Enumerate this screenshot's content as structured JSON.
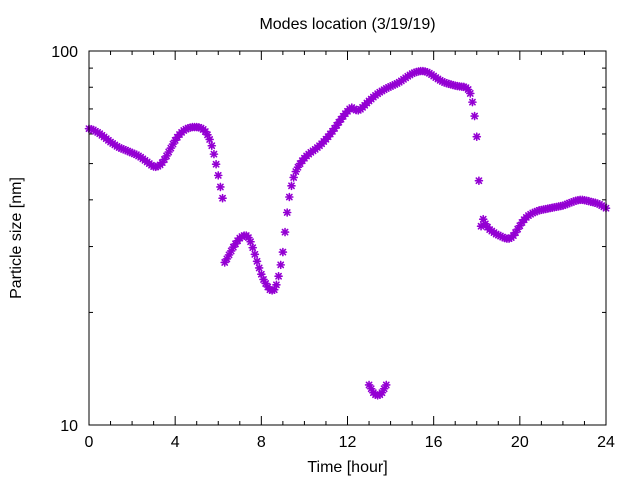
{
  "chart_data": {
    "type": "scatter",
    "title": "Modes location (3/19/19)",
    "xlabel": "Time [hour]",
    "ylabel": "Particle size [nm]",
    "xlim": [
      0,
      24
    ],
    "ylim": [
      10,
      100
    ],
    "yscale": "log",
    "grid": false,
    "legend": "none",
    "x_ticks": [
      "0",
      "4",
      "8",
      "12",
      "16",
      "20",
      "24"
    ],
    "y_ticks": [
      "10",
      "100"
    ],
    "marker_color": "#9400d3",
    "series": [
      {
        "points": [
          [
            0.0,
            62.0
          ],
          [
            0.1,
            61.8
          ],
          [
            0.2,
            61.5
          ],
          [
            0.3,
            61.0
          ],
          [
            0.4,
            60.6
          ],
          [
            0.5,
            60.1
          ],
          [
            0.6,
            59.5
          ],
          [
            0.7,
            58.9
          ],
          [
            0.8,
            58.3
          ],
          [
            0.9,
            57.7
          ],
          [
            1.0,
            57.1
          ],
          [
            1.1,
            56.6
          ],
          [
            1.2,
            56.1
          ],
          [
            1.3,
            55.6
          ],
          [
            1.4,
            55.2
          ],
          [
            1.5,
            54.9
          ],
          [
            1.6,
            54.6
          ],
          [
            1.7,
            54.3
          ],
          [
            1.8,
            54.0
          ],
          [
            1.9,
            53.7
          ],
          [
            2.0,
            53.4
          ],
          [
            2.1,
            53.1
          ],
          [
            2.2,
            52.8
          ],
          [
            2.3,
            52.4
          ],
          [
            2.4,
            52.0
          ],
          [
            2.5,
            51.5
          ],
          [
            2.6,
            51.0
          ],
          [
            2.7,
            50.5
          ],
          [
            2.8,
            50.0
          ],
          [
            2.9,
            49.5
          ],
          [
            3.0,
            49.1
          ],
          [
            3.1,
            49.0
          ],
          [
            3.2,
            49.2
          ],
          [
            3.3,
            49.6
          ],
          [
            3.4,
            50.3
          ],
          [
            3.5,
            51.3
          ],
          [
            3.6,
            52.4
          ],
          [
            3.7,
            53.7
          ],
          [
            3.8,
            55.0
          ],
          [
            3.9,
            56.4
          ],
          [
            4.0,
            57.7
          ],
          [
            4.1,
            58.8
          ],
          [
            4.2,
            59.8
          ],
          [
            4.3,
            60.6
          ],
          [
            4.4,
            61.3
          ],
          [
            4.5,
            61.8
          ],
          [
            4.6,
            62.2
          ],
          [
            4.7,
            62.4
          ],
          [
            4.8,
            62.6
          ],
          [
            4.9,
            62.6
          ],
          [
            5.0,
            62.6
          ],
          [
            5.1,
            62.5
          ],
          [
            5.2,
            62.2
          ],
          [
            5.3,
            61.7
          ],
          [
            5.4,
            60.9
          ],
          [
            5.5,
            59.7
          ],
          [
            5.6,
            58.0
          ],
          [
            5.7,
            55.8
          ],
          [
            5.8,
            53.0
          ],
          [
            5.9,
            49.8
          ],
          [
            6.0,
            46.5
          ],
          [
            6.1,
            43.3
          ],
          [
            6.2,
            40.4
          ],
          [
            6.3,
            27.2
          ],
          [
            6.4,
            27.8
          ],
          [
            6.5,
            28.5
          ],
          [
            6.6,
            29.2
          ],
          [
            6.7,
            29.9
          ],
          [
            6.8,
            30.5
          ],
          [
            6.9,
            31.1
          ],
          [
            7.0,
            31.6
          ],
          [
            7.1,
            31.9
          ],
          [
            7.2,
            32.1
          ],
          [
            7.3,
            32.1
          ],
          [
            7.4,
            31.7
          ],
          [
            7.5,
            30.9
          ],
          [
            7.6,
            29.8
          ],
          [
            7.7,
            28.6
          ],
          [
            7.8,
            27.4
          ],
          [
            7.9,
            26.3
          ],
          [
            8.0,
            25.3
          ],
          [
            8.1,
            24.5
          ],
          [
            8.2,
            23.9
          ],
          [
            8.3,
            23.4
          ],
          [
            8.4,
            23.0
          ],
          [
            8.5,
            22.9
          ],
          [
            8.6,
            23.0
          ],
          [
            8.7,
            23.7
          ],
          [
            8.8,
            25.0
          ],
          [
            8.9,
            26.8
          ],
          [
            9.0,
            29.0
          ],
          [
            9.1,
            32.8
          ],
          [
            9.2,
            37.0
          ],
          [
            9.3,
            40.7
          ],
          [
            9.4,
            43.6
          ],
          [
            9.5,
            45.9
          ],
          [
            9.6,
            47.6
          ],
          [
            9.7,
            48.9
          ],
          [
            9.8,
            50.0
          ],
          [
            9.9,
            50.9
          ],
          [
            10.0,
            51.7
          ],
          [
            10.1,
            52.4
          ],
          [
            10.2,
            53.0
          ],
          [
            10.3,
            53.6
          ],
          [
            10.4,
            54.1
          ],
          [
            10.5,
            54.6
          ],
          [
            10.6,
            55.2
          ],
          [
            10.7,
            55.8
          ],
          [
            10.8,
            56.5
          ],
          [
            10.9,
            57.3
          ],
          [
            11.0,
            58.1
          ],
          [
            11.1,
            59.0
          ],
          [
            11.2,
            60.0
          ],
          [
            11.3,
            61.0
          ],
          [
            11.4,
            62.1
          ],
          [
            11.5,
            63.3
          ],
          [
            11.6,
            64.5
          ],
          [
            11.7,
            65.7
          ],
          [
            11.8,
            66.9
          ],
          [
            11.9,
            68.0
          ],
          [
            12.0,
            69.0
          ],
          [
            12.1,
            70.0
          ],
          [
            12.2,
            70.6
          ],
          [
            12.3,
            70.0
          ],
          [
            12.4,
            69.5
          ],
          [
            12.5,
            69.4
          ],
          [
            12.6,
            69.9
          ],
          [
            12.7,
            70.7
          ],
          [
            12.8,
            71.6
          ],
          [
            12.9,
            72.6
          ],
          [
            13.0,
            73.5
          ],
          [
            13.1,
            74.4
          ],
          [
            13.2,
            75.3
          ],
          [
            13.3,
            76.1
          ],
          [
            13.4,
            76.9
          ],
          [
            13.5,
            77.6
          ],
          [
            13.6,
            78.2
          ],
          [
            13.7,
            78.8
          ],
          [
            13.8,
            79.4
          ],
          [
            13.9,
            79.9
          ],
          [
            14.0,
            80.4
          ],
          [
            14.1,
            80.9
          ],
          [
            14.2,
            81.4
          ],
          [
            14.3,
            81.9
          ],
          [
            14.4,
            82.5
          ],
          [
            14.5,
            83.2
          ],
          [
            14.6,
            84.0
          ],
          [
            14.7,
            84.8
          ],
          [
            14.8,
            85.6
          ],
          [
            14.9,
            86.3
          ],
          [
            15.0,
            87.0
          ],
          [
            15.1,
            87.5
          ],
          [
            15.2,
            87.9
          ],
          [
            15.3,
            88.2
          ],
          [
            15.4,
            88.4
          ],
          [
            15.5,
            88.4
          ],
          [
            15.6,
            88.2
          ],
          [
            15.7,
            87.8
          ],
          [
            15.8,
            87.2
          ],
          [
            15.9,
            86.5
          ],
          [
            16.0,
            85.7
          ],
          [
            16.1,
            84.9
          ],
          [
            16.2,
            84.2
          ],
          [
            16.3,
            83.5
          ],
          [
            16.4,
            82.9
          ],
          [
            16.5,
            82.4
          ],
          [
            16.6,
            82.0
          ],
          [
            16.7,
            81.7
          ],
          [
            16.8,
            81.4
          ],
          [
            16.9,
            81.1
          ],
          [
            17.0,
            80.8
          ],
          [
            17.1,
            80.6
          ],
          [
            17.2,
            80.4
          ],
          [
            17.3,
            80.3
          ],
          [
            17.4,
            80.2
          ],
          [
            17.5,
            79.8
          ],
          [
            17.6,
            78.9
          ],
          [
            17.7,
            77.0
          ],
          [
            17.8,
            73.0
          ],
          [
            17.9,
            67.0
          ],
          [
            18.0,
            59.0
          ],
          [
            18.1,
            45.0
          ],
          [
            18.2,
            34.0
          ],
          [
            18.3,
            35.5
          ],
          [
            18.4,
            34.5
          ],
          [
            18.5,
            33.8
          ],
          [
            18.6,
            33.3
          ],
          [
            18.7,
            33.0
          ],
          [
            18.8,
            32.7
          ],
          [
            18.9,
            32.4
          ],
          [
            19.0,
            32.2
          ],
          [
            19.1,
            32.0
          ],
          [
            19.2,
            31.8
          ],
          [
            19.3,
            31.6
          ],
          [
            19.4,
            31.5
          ],
          [
            19.5,
            31.5
          ],
          [
            19.6,
            31.7
          ],
          [
            19.7,
            32.1
          ],
          [
            19.8,
            32.7
          ],
          [
            19.9,
            33.4
          ],
          [
            20.0,
            34.1
          ],
          [
            20.1,
            34.8
          ],
          [
            20.2,
            35.4
          ],
          [
            20.3,
            35.9
          ],
          [
            20.4,
            36.3
          ],
          [
            20.5,
            36.6
          ],
          [
            20.6,
            36.9
          ],
          [
            20.7,
            37.1
          ],
          [
            20.8,
            37.3
          ],
          [
            20.9,
            37.5
          ],
          [
            21.0,
            37.6
          ],
          [
            21.1,
            37.7
          ],
          [
            21.2,
            37.8
          ],
          [
            21.3,
            37.9
          ],
          [
            21.4,
            38.0
          ],
          [
            21.5,
            38.1
          ],
          [
            21.6,
            38.2
          ],
          [
            21.7,
            38.3
          ],
          [
            21.8,
            38.4
          ],
          [
            21.9,
            38.5
          ],
          [
            22.0,
            38.6
          ],
          [
            22.1,
            38.8
          ],
          [
            22.2,
            39.0
          ],
          [
            22.3,
            39.2
          ],
          [
            22.4,
            39.4
          ],
          [
            22.5,
            39.6
          ],
          [
            22.6,
            39.8
          ],
          [
            22.7,
            39.9
          ],
          [
            22.8,
            40.0
          ],
          [
            22.9,
            40.0
          ],
          [
            23.0,
            39.9
          ],
          [
            23.1,
            39.8
          ],
          [
            23.2,
            39.7
          ],
          [
            23.3,
            39.5
          ],
          [
            23.4,
            39.4
          ],
          [
            23.5,
            39.3
          ],
          [
            23.6,
            39.1
          ],
          [
            23.7,
            38.9
          ],
          [
            23.8,
            38.6
          ],
          [
            23.9,
            38.3
          ],
          [
            24.0,
            38.0
          ],
          [
            13.0,
            12.8
          ],
          [
            13.1,
            12.5
          ],
          [
            13.2,
            12.2
          ],
          [
            13.3,
            12.05
          ],
          [
            13.4,
            12.0
          ],
          [
            13.5,
            12.05
          ],
          [
            13.6,
            12.2
          ],
          [
            13.7,
            12.5
          ],
          [
            13.8,
            12.8
          ]
        ]
      }
    ]
  }
}
